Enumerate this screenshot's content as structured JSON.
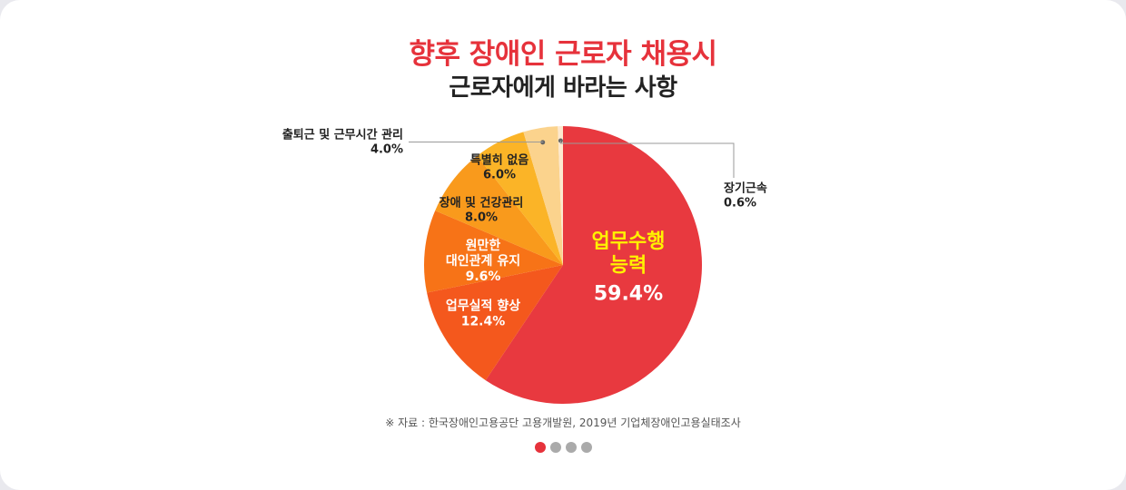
{
  "title": "향후 장애인 근로자 채용시",
  "subtitle": "근로자에게 바라는 사항",
  "source": "※ 자료 : 한국장애인고용공단 고용개발원, 2019년 기업체장애인고용실태조사",
  "pagination": {
    "count": 4,
    "active": 0
  },
  "chart_data": {
    "type": "pie",
    "title": "향후 장애인 근로자 채용시 근로자에게 바라는 사항",
    "start_angle_deg": 0,
    "direction": "clockwise",
    "slices": [
      {
        "name": "업무수행 능력",
        "value": 59.4,
        "label_lines": [
          "업무수행",
          "능력"
        ],
        "value_label": "59.4%",
        "color": "#e8393f",
        "label_color": "#fff200",
        "value_color": "#ffffff"
      },
      {
        "name": "업무실적 향상",
        "value": 12.4,
        "label_lines": [
          "업무실적 향상"
        ],
        "value_label": "12.4%",
        "color": "#f4581d",
        "label_color": "#ffffff",
        "value_color": "#ffffff"
      },
      {
        "name": "원만한 대인관계 유지",
        "value": 9.6,
        "label_lines": [
          "원만한",
          "대인관계 유지"
        ],
        "value_label": "9.6%",
        "color": "#f77317",
        "label_color": "#ffffff",
        "value_color": "#ffffff"
      },
      {
        "name": "장애 및 건강관리",
        "value": 8.0,
        "label_lines": [
          "장애 및 건강관리"
        ],
        "value_label": "8.0%",
        "color": "#f99a1c",
        "label_color": "#222222",
        "value_color": "#222222"
      },
      {
        "name": "특별히 없음",
        "value": 6.0,
        "label_lines": [
          "특별히 없음"
        ],
        "value_label": "6.0%",
        "color": "#fbb427",
        "label_color": "#222222",
        "value_color": "#222222"
      },
      {
        "name": "출퇴근 및 근무시간 관리",
        "value": 4.0,
        "label_lines": [
          "출퇴근 및 근무시간 관리"
        ],
        "value_label": "4.0%",
        "color": "#fbd38d",
        "label_color": "#222222",
        "value_color": "#222222",
        "callout": "left"
      },
      {
        "name": "장기근속",
        "value": 0.6,
        "label_lines": [
          "장기근속"
        ],
        "value_label": "0.6%",
        "color": "#fde9cf",
        "label_color": "#222222",
        "value_color": "#222222",
        "callout": "right"
      }
    ]
  }
}
